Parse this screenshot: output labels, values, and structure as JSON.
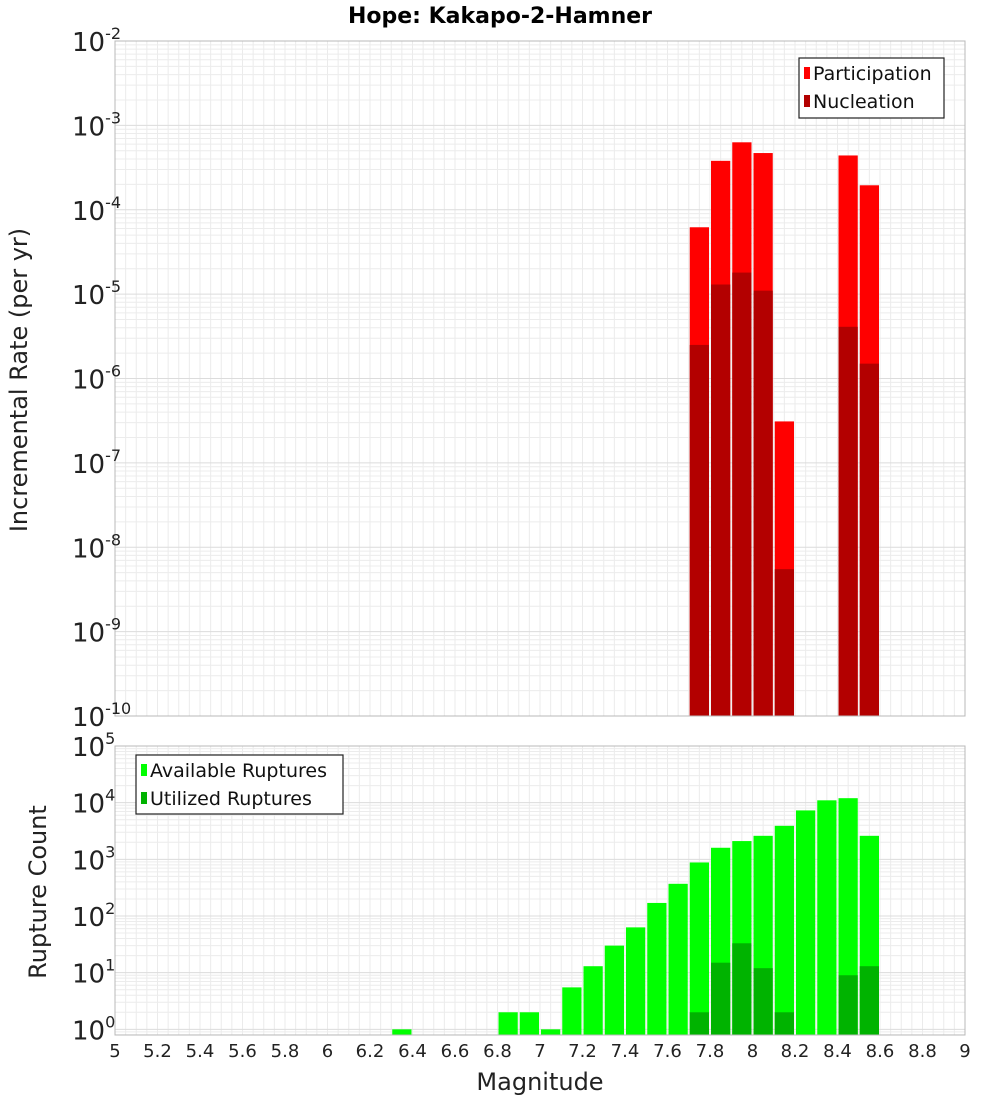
{
  "chart_data": {
    "title": "Hope: Kakapo-2-Hamner",
    "xlabel": "Magnitude",
    "xlim": [
      5,
      9
    ],
    "xticks": [
      "5",
      "5.2",
      "5.4",
      "5.6",
      "5.8",
      "6",
      "6.2",
      "6.4",
      "6.6",
      "6.8",
      "7",
      "7.2",
      "7.4",
      "7.6",
      "7.8",
      "8",
      "8.2",
      "8.4",
      "8.6",
      "8.8",
      "9"
    ],
    "bin_width": 0.1,
    "panels": [
      {
        "type": "bar",
        "ylabel": "Incremental Rate (per yr)",
        "yscale": "log",
        "ylim_exp": [
          -10,
          -2
        ],
        "yticks": [
          {
            "base": "10",
            "exp": "-2"
          },
          {
            "base": "10",
            "exp": "-3"
          },
          {
            "base": "10",
            "exp": "-4"
          },
          {
            "base": "10",
            "exp": "-5"
          },
          {
            "base": "10",
            "exp": "-6"
          },
          {
            "base": "10",
            "exp": "-7"
          },
          {
            "base": "10",
            "exp": "-8"
          },
          {
            "base": "10",
            "exp": "-9"
          },
          {
            "base": "10",
            "exp": "-10"
          }
        ],
        "legend_position": "top-right",
        "series": [
          {
            "name": "Participation",
            "color": "#ff0000",
            "points": [
              {
                "x": 7.75,
                "y": 6.2e-05
              },
              {
                "x": 7.85,
                "y": 0.00038
              },
              {
                "x": 7.95,
                "y": 0.00063
              },
              {
                "x": 8.05,
                "y": 0.00047
              },
              {
                "x": 8.15,
                "y": 3.1e-07
              },
              {
                "x": 8.45,
                "y": 0.00044
              },
              {
                "x": 8.55,
                "y": 0.000195
              }
            ]
          },
          {
            "name": "Nucleation",
            "color": "#b30000",
            "points": [
              {
                "x": 7.75,
                "y": 2.5e-06
              },
              {
                "x": 7.85,
                "y": 1.3e-05
              },
              {
                "x": 7.95,
                "y": 1.8e-05
              },
              {
                "x": 8.05,
                "y": 1.1e-05
              },
              {
                "x": 8.15,
                "y": 5.5e-09
              },
              {
                "x": 8.45,
                "y": 4.1e-06
              },
              {
                "x": 8.55,
                "y": 1.5e-06
              }
            ]
          }
        ]
      },
      {
        "type": "bar",
        "ylabel": "Rupture Count",
        "yscale": "log",
        "ylim_exp": [
          -0.1,
          5
        ],
        "yticks": [
          {
            "base": "10",
            "exp": "5"
          },
          {
            "base": "10",
            "exp": "4"
          },
          {
            "base": "10",
            "exp": "3"
          },
          {
            "base": "10",
            "exp": "2"
          },
          {
            "base": "10",
            "exp": "1"
          },
          {
            "base": "10",
            "exp": "0"
          }
        ],
        "legend_position": "top-left",
        "series": [
          {
            "name": "Available Ruptures",
            "color": "#00ff00",
            "points": [
              {
                "x": 6.35,
                "y": 1
              },
              {
                "x": 6.85,
                "y": 2
              },
              {
                "x": 6.95,
                "y": 2
              },
              {
                "x": 7.05,
                "y": 1
              },
              {
                "x": 7.15,
                "y": 5.5
              },
              {
                "x": 7.25,
                "y": 13
              },
              {
                "x": 7.35,
                "y": 30
              },
              {
                "x": 7.45,
                "y": 63
              },
              {
                "x": 7.55,
                "y": 170
              },
              {
                "x": 7.65,
                "y": 370
              },
              {
                "x": 7.75,
                "y": 880
              },
              {
                "x": 7.85,
                "y": 1600
              },
              {
                "x": 7.95,
                "y": 2100
              },
              {
                "x": 8.05,
                "y": 2600
              },
              {
                "x": 8.15,
                "y": 3900
              },
              {
                "x": 8.25,
                "y": 7300
              },
              {
                "x": 8.35,
                "y": 11000
              },
              {
                "x": 8.45,
                "y": 12000
              },
              {
                "x": 8.55,
                "y": 2600
              }
            ]
          },
          {
            "name": "Utilized Ruptures",
            "color": "#00b300",
            "points": [
              {
                "x": 7.75,
                "y": 2
              },
              {
                "x": 7.85,
                "y": 15
              },
              {
                "x": 7.95,
                "y": 33
              },
              {
                "x": 8.05,
                "y": 12
              },
              {
                "x": 8.15,
                "y": 2
              },
              {
                "x": 8.45,
                "y": 9
              },
              {
                "x": 8.55,
                "y": 13
              }
            ]
          }
        ]
      }
    ]
  }
}
